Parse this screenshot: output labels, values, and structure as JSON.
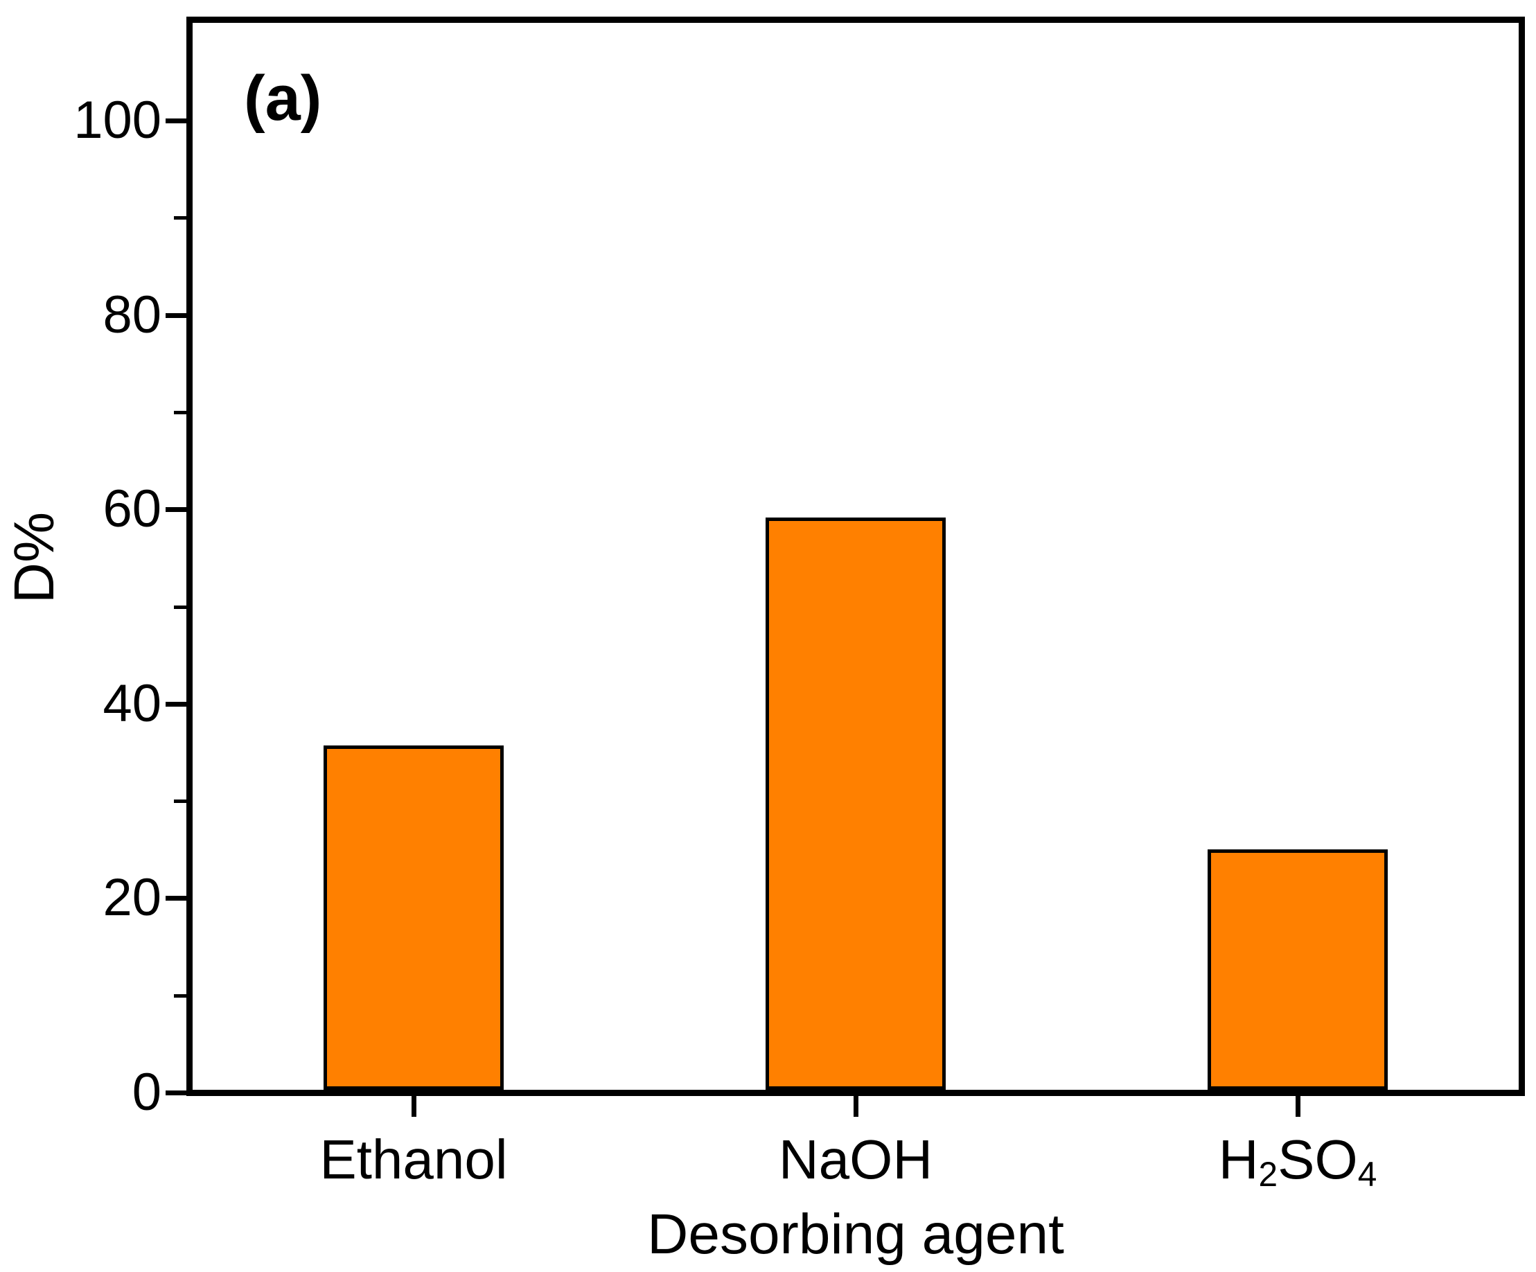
{
  "panel_label": "(a)",
  "colors": {
    "bar_fill": "#FF8000",
    "bar_border": "#000000",
    "axis": "#000000",
    "background": "#FFFFFF"
  },
  "chart_data": {
    "type": "bar",
    "categories": [
      "Ethanol",
      "NaOH",
      "H_2SO_4"
    ],
    "values": [
      35.4,
      58.9,
      24.7
    ],
    "title": "",
    "xlabel": "Desorbing agent",
    "ylabel": "D%",
    "ylim": [
      0,
      110
    ],
    "yticks_major": [
      0,
      20,
      40,
      60,
      80,
      100
    ],
    "yticks_minor": [
      10,
      30,
      50,
      70,
      90
    ],
    "grid": false,
    "legend_position": "none",
    "bar_color": "#FF8000",
    "bar_border_color": "#000000"
  }
}
